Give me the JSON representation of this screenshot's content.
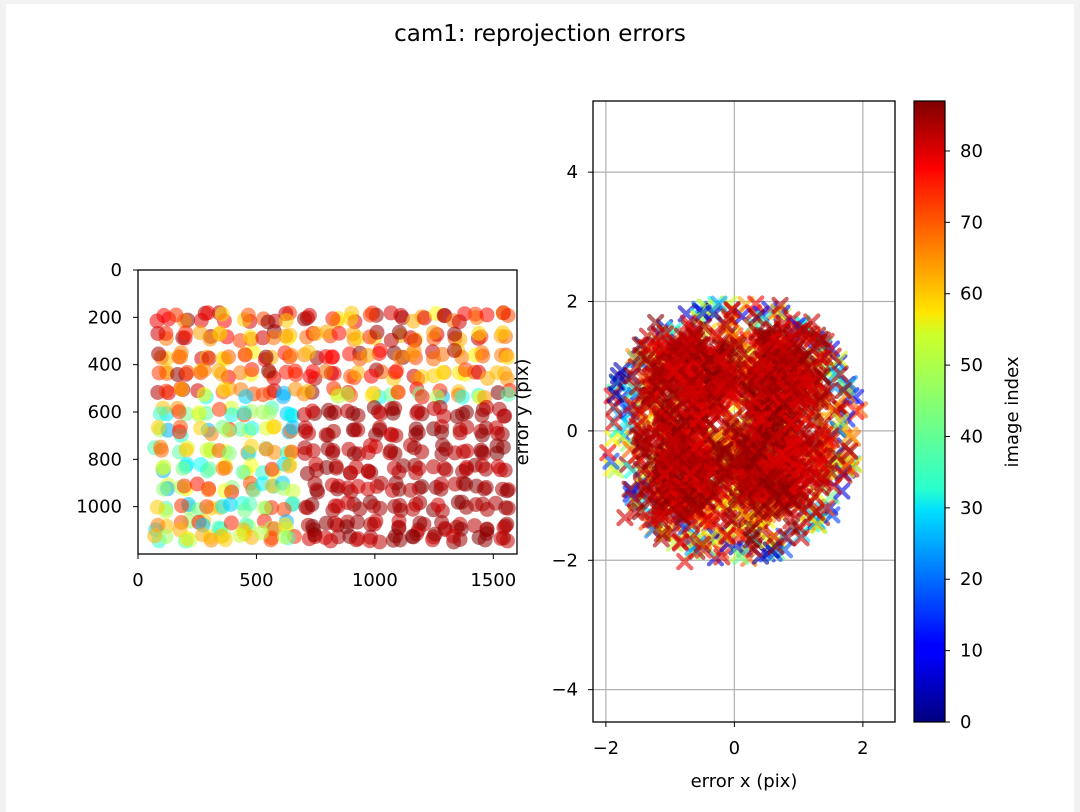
{
  "figure": {
    "title": "cam1: reprojection errors"
  },
  "chart_data": [
    {
      "type": "scatter",
      "description_panel": "left",
      "xlim": [
        0,
        1600
      ],
      "ylim": [
        1200,
        0
      ],
      "y_inverted": true,
      "xticks": [
        "0",
        "500",
        "1000",
        "1500"
      ],
      "yticks": [
        "0",
        "200",
        "400",
        "600",
        "800",
        "1000"
      ],
      "xlabel": "",
      "ylabel": "",
      "marker": "circle",
      "color_by": "image index",
      "grid_rows_y": [
        200,
        280,
        360,
        440,
        520,
        600,
        680,
        760,
        840,
        920,
        1000,
        1080,
        1130
      ],
      "grid_cols_x": [
        100,
        190,
        280,
        370,
        460,
        550,
        640,
        730,
        820,
        910,
        1000,
        1090,
        1180,
        1270,
        1360,
        1450,
        1540
      ],
      "dark_red_block": {
        "x": [
          700,
          1580
        ],
        "y": [
          550,
          1130
        ],
        "index": 85
      }
    },
    {
      "type": "scatter",
      "description_panel": "right",
      "xlim": [
        -2.2,
        2.5
      ],
      "ylim": [
        -4.5,
        5.1
      ],
      "xticks": [
        "−2",
        "0",
        "2"
      ],
      "yticks": [
        "−4",
        "−2",
        "0",
        "2",
        "4"
      ],
      "xlabel": "error x (pix)",
      "ylabel": "error y (pix)",
      "marker": "x",
      "grid": true,
      "cluster_centers": [
        [
          -0.7,
          0.8
        ],
        [
          0.7,
          0.8
        ],
        [
          -0.8,
          -0.6
        ],
        [
          0.6,
          -0.6
        ]
      ],
      "cloud_radius": 2.0
    }
  ],
  "colorbar": {
    "label": "image index",
    "range": [
      0,
      87
    ],
    "ticks": [
      "0",
      "10",
      "20",
      "30",
      "40",
      "50",
      "60",
      "70",
      "80"
    ],
    "colormap": "jet"
  }
}
